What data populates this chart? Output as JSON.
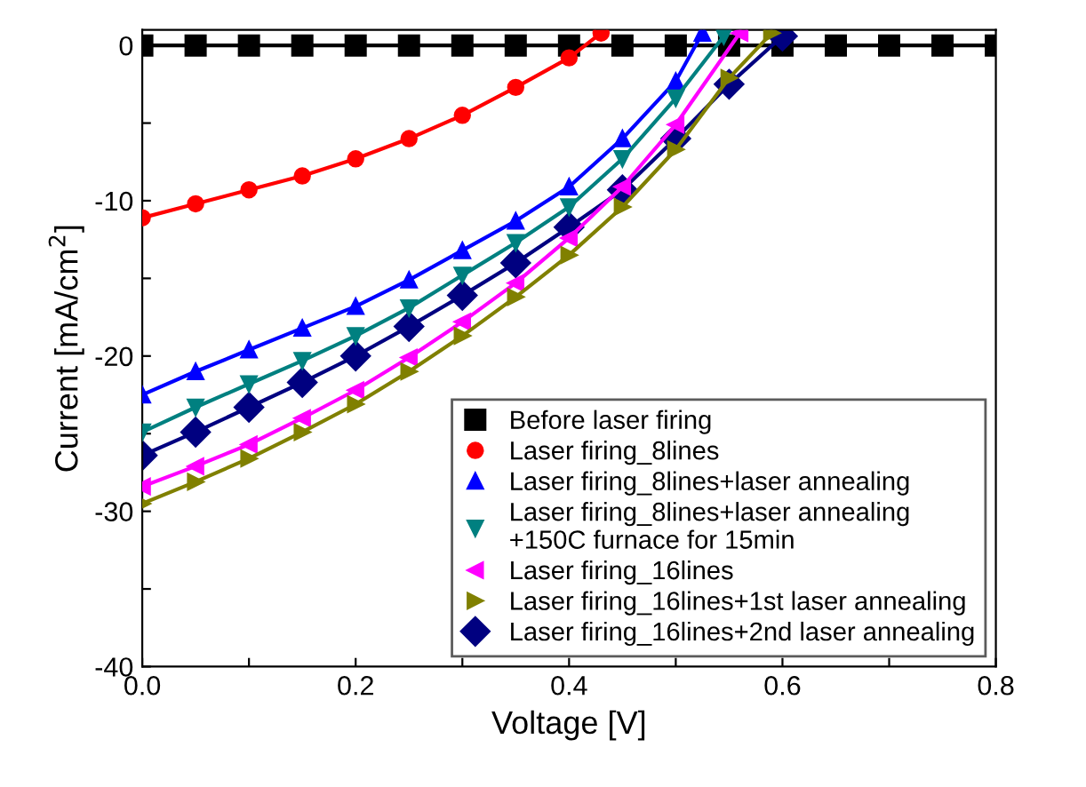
{
  "chart_data": {
    "type": "line",
    "xlabel": "Voltage [V]",
    "ylabel": "Current [mA/cm$^{2}$]",
    "xlim": [
      0,
      0.8
    ],
    "ylim": [
      -40,
      1
    ],
    "xticks": [
      {
        "value": 0,
        "label": "0.0"
      },
      {
        "value": 0.1,
        "label": null
      },
      {
        "value": 0.2,
        "label": "0.2"
      },
      {
        "value": 0.3,
        "label": null
      },
      {
        "value": 0.4,
        "label": "0.4"
      },
      {
        "value": 0.5,
        "label": null
      },
      {
        "value": 0.6,
        "label": "0.6"
      },
      {
        "value": 0.7,
        "label": null
      },
      {
        "value": 0.8,
        "label": "0.8"
      }
    ],
    "yticks": [
      -40,
      {
        "value": -35,
        "label": null
      },
      -30,
      {
        "value": -25,
        "label": null
      },
      -20,
      {
        "value": -15,
        "label": null
      },
      -10,
      {
        "value": -5,
        "label": null
      },
      0
    ],
    "grid": false,
    "legend": "bottom right",
    "line_style": "solid",
    "series": [
      {
        "name": "Before laser firing",
        "color": "#000000",
        "marker": "square",
        "x": [
          0,
          0.05,
          0.1,
          0.15,
          0.2,
          0.25,
          0.3,
          0.35,
          0.4,
          0.45,
          0.5,
          0.55,
          0.6,
          0.65,
          0.7,
          0.75,
          0.8
        ],
        "values": [
          0,
          0,
          0,
          0,
          0,
          0,
          0,
          0,
          0,
          0,
          0,
          0,
          0,
          0,
          0,
          0,
          0
        ]
      },
      {
        "name": "Laser firing_8lines",
        "color": "#ff0000",
        "marker": "circle",
        "x": [
          0,
          0.05,
          0.1,
          0.15,
          0.2,
          0.25,
          0.3,
          0.35,
          0.4,
          0.43
        ],
        "values": [
          -11.1,
          -10.2,
          -9.3,
          -8.4,
          -7.3,
          -6.0,
          -4.5,
          -2.7,
          -0.8,
          0.8
        ]
      },
      {
        "name": "Laser firing_8lines+laser annealing",
        "color": "#0000ff",
        "marker": "triangle_up",
        "x": [
          0,
          0.05,
          0.1,
          0.15,
          0.2,
          0.25,
          0.3,
          0.35,
          0.4,
          0.45,
          0.5,
          0.525
        ],
        "values": [
          -22.5,
          -21.0,
          -19.6,
          -18.2,
          -16.8,
          -15.1,
          -13.2,
          -11.3,
          -9.1,
          -6.0,
          -2.3,
          0.8
        ]
      },
      {
        "name": "Laser firing_8lines+laser annealing\n+150C furnace for 15min",
        "color": "#008080",
        "marker": "triangle_down",
        "x": [
          0,
          0.05,
          0.1,
          0.15,
          0.2,
          0.25,
          0.3,
          0.35,
          0.4,
          0.45,
          0.5,
          0.545
        ],
        "values": [
          -24.9,
          -23.3,
          -21.8,
          -20.3,
          -18.7,
          -16.9,
          -14.8,
          -12.7,
          -10.4,
          -7.3,
          -3.4,
          0.6
        ]
      },
      {
        "name": "Laser firing_16lines",
        "color": "#ff00ff",
        "marker": "triangle_left",
        "x": [
          0,
          0.05,
          0.1,
          0.15,
          0.2,
          0.25,
          0.3,
          0.35,
          0.4,
          0.45,
          0.5,
          0.56
        ],
        "values": [
          -28.4,
          -27.1,
          -25.7,
          -24.0,
          -22.2,
          -20.1,
          -17.8,
          -15.3,
          -12.4,
          -9.1,
          -5.1,
          0.8
        ]
      },
      {
        "name": "Laser firing_16lines+1st laser annealing",
        "color": "#808000",
        "marker": "triangle_right",
        "x": [
          0,
          0.05,
          0.1,
          0.15,
          0.2,
          0.25,
          0.3,
          0.35,
          0.4,
          0.45,
          0.5,
          0.55,
          0.59
        ],
        "values": [
          -29.5,
          -28.1,
          -26.6,
          -24.9,
          -23.1,
          -21.0,
          -18.7,
          -16.2,
          -13.5,
          -10.4,
          -6.7,
          -2.1,
          0.8
        ]
      },
      {
        "name": "Laser firing_16lines+2nd laser annealing",
        "color": "#000080",
        "marker": "diamond",
        "x": [
          0,
          0.05,
          0.1,
          0.15,
          0.2,
          0.25,
          0.3,
          0.35,
          0.4,
          0.45,
          0.5,
          0.55,
          0.6
        ],
        "values": [
          -26.4,
          -24.9,
          -23.3,
          -21.7,
          -20.0,
          -18.1,
          -16.1,
          -14.0,
          -11.7,
          -9.3,
          -6.0,
          -2.5,
          0.6
        ]
      }
    ]
  }
}
